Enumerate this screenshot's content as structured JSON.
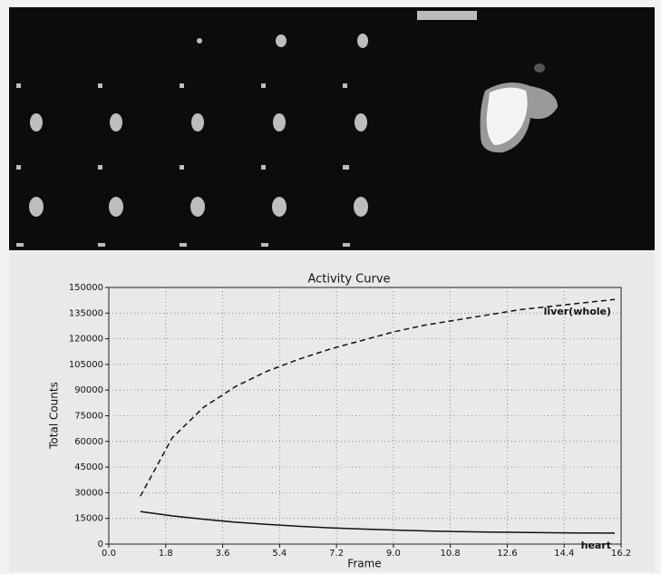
{
  "chart_data": {
    "type": "line",
    "title": "Activity Curve",
    "x_label": "Frame",
    "y_label": "Total Counts",
    "x": [
      1,
      2,
      3,
      4,
      5,
      6,
      7,
      8,
      9,
      10,
      11,
      12,
      13,
      14,
      15,
      16
    ],
    "series": [
      {
        "name": "liver(whole)",
        "color": "#111111",
        "line_style": "dashed",
        "values": [
          28000,
          62000,
          80000,
          92000,
          101000,
          108000,
          114000,
          119000,
          124000,
          128000,
          131000,
          134000,
          137000,
          139000,
          141000,
          143000
        ]
      },
      {
        "name": "heart",
        "color": "#111111",
        "line_style": "solid",
        "values": [
          19000,
          16500,
          14500,
          12800,
          11500,
          10400,
          9500,
          8800,
          8200,
          7700,
          7300,
          7000,
          6800,
          6600,
          6500,
          6400
        ]
      }
    ],
    "xlim": [
      0,
      16.2
    ],
    "xticks": [
      {
        "value": 0,
        "label": "0.0"
      },
      1.8,
      3.6,
      5.4,
      7.2,
      {
        "value": 9,
        "label": "9.0"
      },
      10.8,
      12.6,
      14.4,
      16.2
    ],
    "ylim": [
      0,
      150000
    ],
    "yticks": [
      0,
      15000,
      30000,
      45000,
      60000,
      75000,
      90000,
      105000,
      120000,
      135000,
      150000
    ],
    "grid": true
  }
}
